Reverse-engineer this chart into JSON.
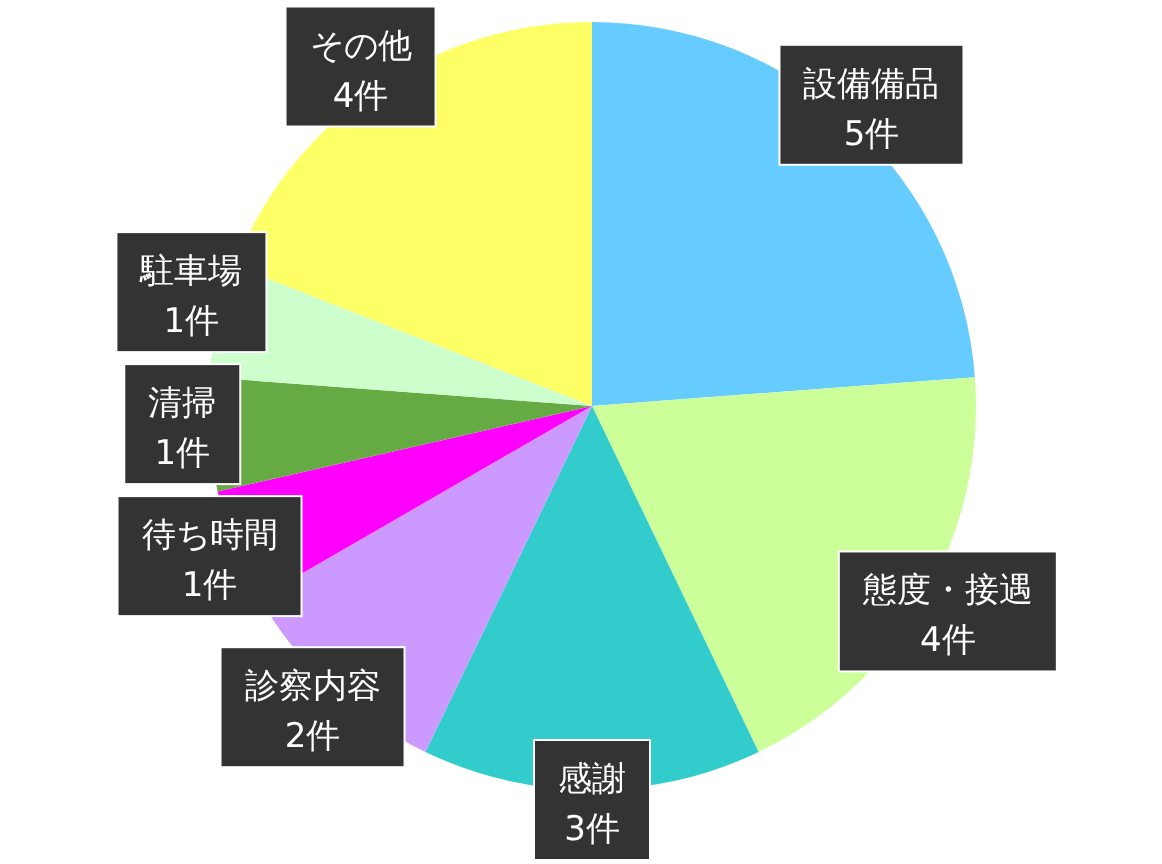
{
  "chart_data": {
    "type": "pie",
    "categories": [
      "設備備品",
      "態度・接遇",
      "感謝",
      "診察内容",
      "待ち時間",
      "清掃",
      "駐車場",
      "その他"
    ],
    "values": [
      5,
      4,
      3,
      2,
      1,
      1,
      1,
      4
    ],
    "value_labels": [
      "5件",
      "4件",
      "3件",
      "2件",
      "1件",
      "1件",
      "1件",
      "4件"
    ],
    "colors": [
      "#66ccff",
      "#ccff99",
      "#33cccc",
      "#cc99ff",
      "#ff00ff",
      "#66aa44",
      "#ccffcc",
      "#ffff66"
    ]
  }
}
